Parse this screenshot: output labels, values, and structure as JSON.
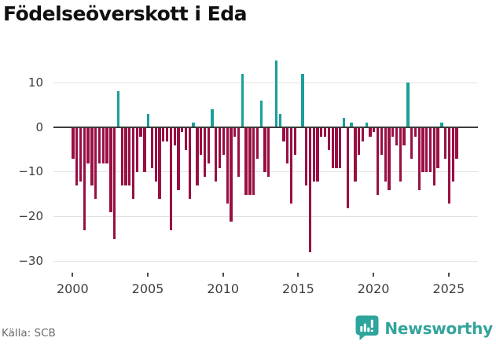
{
  "title": "Födelseöverskott i Eda",
  "source": {
    "label": "Källa: SCB"
  },
  "branding": {
    "name": "Newsworthy"
  },
  "chart_data": {
    "type": "bar",
    "title": "Födelseöverskott i Eda",
    "xlabel": "",
    "ylabel": "",
    "x_axis": {
      "tick_years": [
        2000,
        2005,
        2010,
        2015,
        2020,
        2025
      ],
      "start_year": 2000
    },
    "y_axis": {
      "ticks": [
        10,
        0,
        -10,
        -20,
        -30
      ],
      "tick_labels": [
        "10",
        "0",
        "−10",
        "−20",
        "−30"
      ],
      "ylim": [
        -30,
        16
      ]
    },
    "grid": true,
    "legend": false,
    "frequency": "quarterly",
    "start_quarter": "2000-Q1",
    "end_quarter": "2025-Q3",
    "colors": {
      "positive": "#18a099",
      "negative": "#990f44"
    },
    "series": [
      {
        "name": "Födelseöverskott",
        "values": [
          -7,
          -13,
          -12,
          -23,
          -8,
          -13,
          -16,
          -8,
          -8,
          -8,
          -19,
          -25,
          8,
          -13,
          -13,
          -13,
          -16,
          -10,
          -2,
          -10,
          3,
          -9,
          -12,
          -16,
          -3,
          -3,
          -23,
          -4,
          -14,
          -1,
          -5,
          -16,
          1,
          -13,
          -6,
          -11,
          -8,
          4,
          -12,
          -9,
          -6,
          -17,
          -21,
          -2,
          -11,
          12,
          -15,
          -15,
          -15,
          -7,
          6,
          -10,
          -11,
          0,
          15,
          3,
          -3,
          -8,
          -17,
          -6,
          0,
          12,
          -13,
          -28,
          -12,
          -12,
          -2,
          -2,
          -5,
          -9,
          -9,
          -9,
          2,
          -18,
          1,
          -12,
          -6,
          -3,
          1,
          -2,
          -1,
          -15,
          -6,
          -12,
          -14,
          -2,
          -4,
          -12,
          -4,
          10,
          -7,
          -2,
          -14,
          -10,
          -10,
          -10,
          -13,
          -9,
          1,
          -7,
          -17,
          -12,
          -7
        ]
      }
    ]
  }
}
